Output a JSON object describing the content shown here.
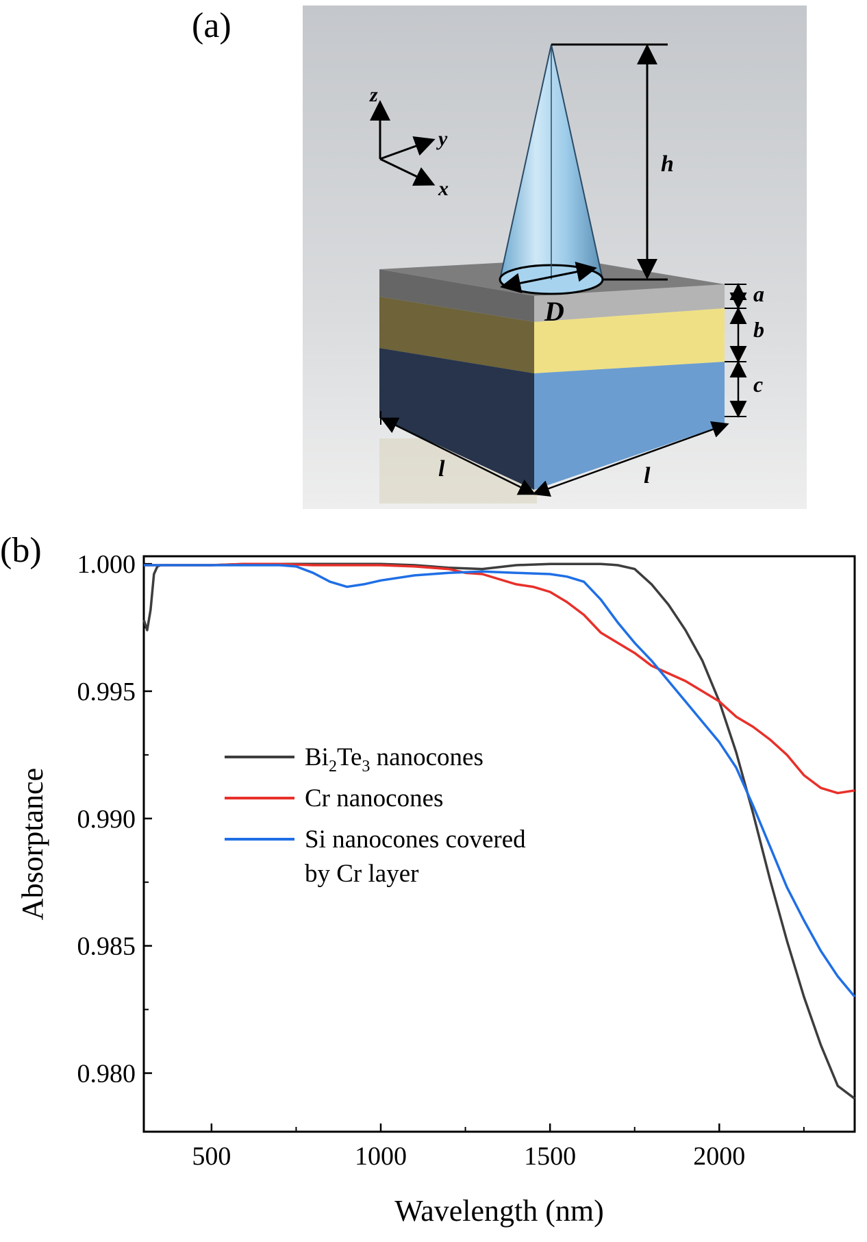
{
  "panels": {
    "a_label": "(a)",
    "b_label": "(b)"
  },
  "schematic": {
    "axes": {
      "z": "z",
      "y": "y",
      "x": "x"
    },
    "dimensions": {
      "height": "h",
      "diameter": "D",
      "layer_a": "a",
      "layer_b": "b",
      "layer_c": "c",
      "length_left": "l",
      "length_right": "l"
    },
    "colors": {
      "background": "#c9ccd0",
      "cone": "#8fc4e6",
      "top_layer": "#7a7a7a",
      "middle_layer": "#e7d77a",
      "bottom_layer": "#5b8cbf"
    }
  },
  "chart_data": {
    "type": "line",
    "xlabel": "Wavelength (nm)",
    "ylabel": "Absorptance",
    "xlim": [
      300,
      2400
    ],
    "ylim": [
      0.9777,
      1.0003
    ],
    "xticks": [
      500,
      1000,
      1500,
      2000
    ],
    "xtick_labels": [
      "500",
      "1000",
      "1500",
      "2000"
    ],
    "yticks": [
      0.98,
      0.985,
      0.99,
      0.995,
      1.0
    ],
    "ytick_labels": [
      "0.980",
      "0.985",
      "0.990",
      "0.995",
      "1.000"
    ],
    "grid": false,
    "legend_position": "lower-left",
    "series": [
      {
        "name_main": "Bi",
        "name_sub1": "2",
        "name_mid": "Te",
        "name_sub2": "3",
        "name_tail": " nanocones",
        "color": "#3d3d3d",
        "x": [
          300,
          310,
          320,
          330,
          340,
          350,
          400,
          500,
          600,
          700,
          800,
          900,
          1000,
          1100,
          1200,
          1300,
          1400,
          1500,
          1600,
          1650,
          1700,
          1750,
          1800,
          1850,
          1900,
          1950,
          2000,
          2050,
          2100,
          2150,
          2200,
          2250,
          2300,
          2350,
          2400
        ],
        "y": [
          0.9978,
          0.9974,
          0.9982,
          0.9996,
          0.9999,
          0.99995,
          0.99995,
          0.99995,
          1.0,
          1.0,
          1.0,
          1.0,
          1.0,
          0.99995,
          0.99985,
          0.9998,
          0.99995,
          1.0,
          1.0,
          1.0,
          0.99995,
          0.9998,
          0.9992,
          0.9984,
          0.9974,
          0.9962,
          0.9946,
          0.9926,
          0.9902,
          0.9876,
          0.9852,
          0.983,
          0.9811,
          0.9795,
          0.979
        ]
      },
      {
        "name": "Cr nanocones",
        "color": "#e8302a",
        "x": [
          300,
          400,
          500,
          600,
          700,
          800,
          900,
          1000,
          1100,
          1200,
          1250,
          1300,
          1350,
          1400,
          1450,
          1500,
          1550,
          1600,
          1650,
          1700,
          1750,
          1800,
          1850,
          1900,
          1950,
          2000,
          2050,
          2100,
          2150,
          2200,
          2250,
          2300,
          2350,
          2400
        ],
        "y": [
          0.99995,
          0.99995,
          0.99995,
          1.0,
          1.0,
          0.99995,
          0.99995,
          0.99995,
          0.9999,
          0.9998,
          0.99965,
          0.9996,
          0.9994,
          0.9992,
          0.9991,
          0.9989,
          0.9985,
          0.998,
          0.9973,
          0.9969,
          0.9965,
          0.996,
          0.9957,
          0.9954,
          0.995,
          0.9946,
          0.994,
          0.9936,
          0.9931,
          0.9925,
          0.9917,
          0.9912,
          0.991,
          0.9911
        ]
      },
      {
        "name_line1": "Si nanocones covered",
        "name_line2": "by Cr layer",
        "color": "#1f6fe5",
        "x": [
          300,
          400,
          500,
          600,
          700,
          750,
          800,
          850,
          900,
          950,
          1000,
          1100,
          1200,
          1300,
          1400,
          1500,
          1550,
          1600,
          1650,
          1700,
          1750,
          1800,
          1850,
          1900,
          1950,
          2000,
          2050,
          2100,
          2150,
          2200,
          2250,
          2300,
          2350,
          2400
        ],
        "y": [
          0.99995,
          0.99995,
          0.99995,
          0.99995,
          0.99995,
          0.9999,
          0.99965,
          0.9993,
          0.9991,
          0.9992,
          0.99935,
          0.99955,
          0.99965,
          0.9997,
          0.99965,
          0.9996,
          0.9995,
          0.9993,
          0.9986,
          0.9977,
          0.9969,
          0.9962,
          0.9954,
          0.9946,
          0.9938,
          0.993,
          0.992,
          0.9905,
          0.9889,
          0.9873,
          0.986,
          0.9848,
          0.9838,
          0.983
        ]
      }
    ]
  }
}
